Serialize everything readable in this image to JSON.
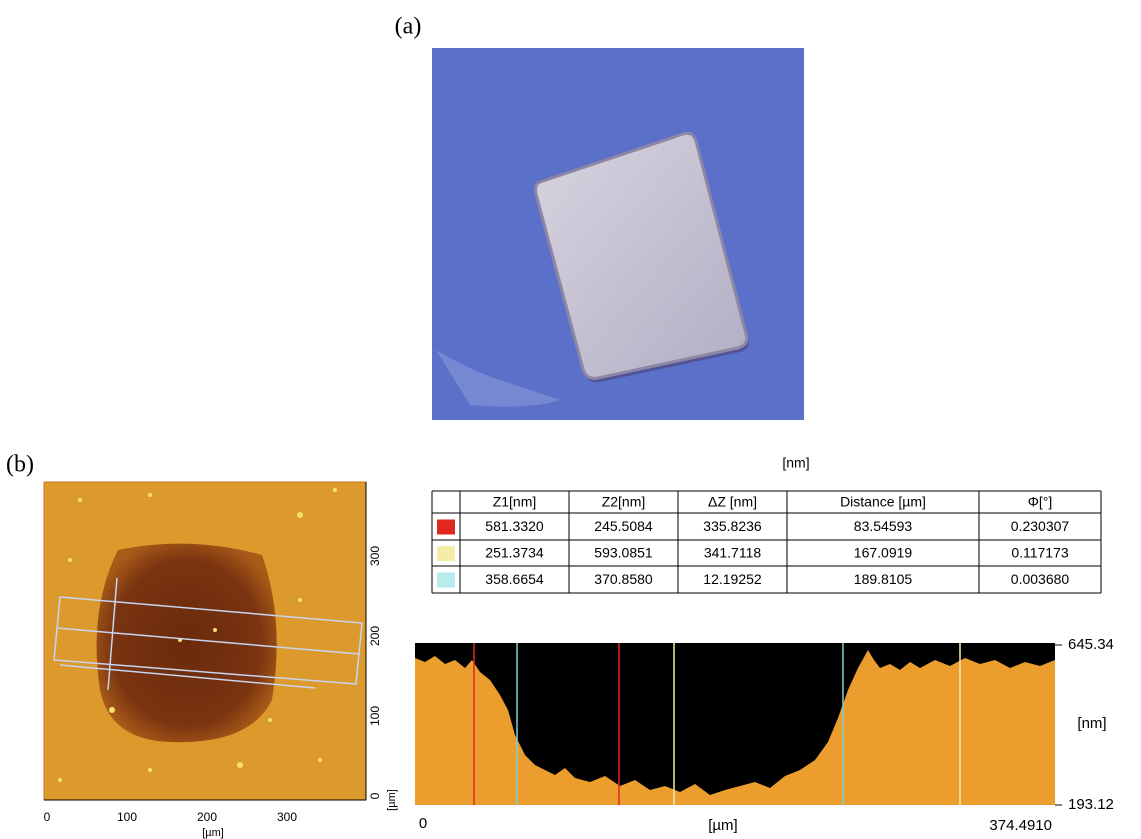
{
  "panel_a": {
    "label": "(a)"
  },
  "panel_b": {
    "label": "(b)",
    "afm_image": {
      "x_ticks": [
        "0",
        "100",
        "200",
        "300"
      ],
      "y_ticks": [
        "0",
        "100",
        "200",
        "300"
      ],
      "x_unit": "[µm]",
      "y_unit": "[µm]"
    },
    "table": {
      "caption": "[nm]",
      "columns": [
        "Z1[nm]",
        "Z2[nm]",
        "ΔZ [nm]",
        "Distance [µm]",
        "Φ[°]"
      ],
      "rows": [
        {
          "color": "#e0281e",
          "cells": [
            "581.3320",
            "245.5084",
            "335.8236",
            "83.54593",
            "0.230307"
          ]
        },
        {
          "color": "#f6ecaa",
          "cells": [
            "251.3734",
            "593.0851",
            "341.7118",
            "167.0919",
            "0.117173"
          ]
        },
        {
          "color": "#b8ecec",
          "cells": [
            "358.6654",
            "370.8580",
            "12.19252",
            "189.8105",
            "0.003680"
          ]
        }
      ]
    },
    "profile": {
      "y_max": "645.34",
      "y_unit": "[nm]",
      "y_min": "193.12",
      "x_min": "0",
      "x_unit": "[µm]",
      "x_max": "374.4910"
    }
  }
}
